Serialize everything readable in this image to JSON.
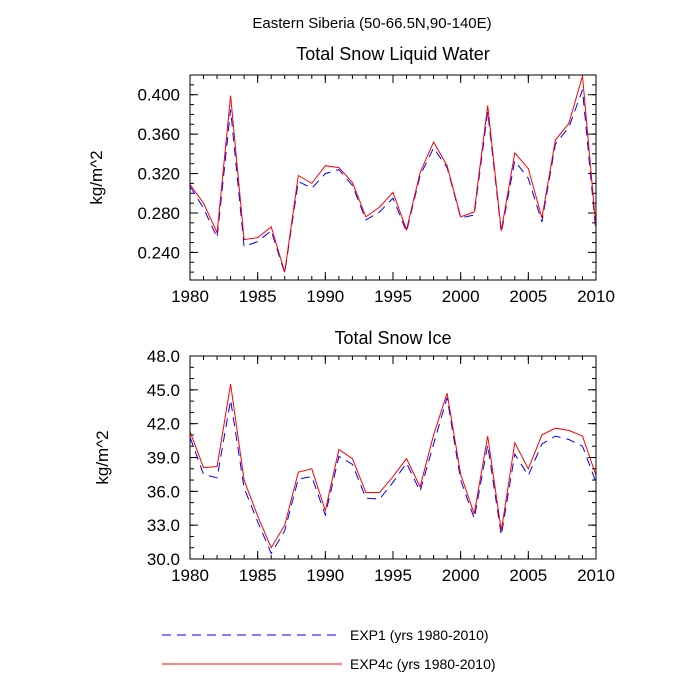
{
  "figure": {
    "suptitle": "Eastern Siberia (50-66.5N,90-140E)"
  },
  "chart_data": [
    {
      "type": "line",
      "title": "Total Snow Liquid Water",
      "xlabel": "",
      "ylabel": "kg/m^2",
      "xlim": [
        1980,
        2010
      ],
      "ylim": [
        0.212,
        0.42
      ],
      "yticks": [
        "0.240",
        "0.280",
        "0.320",
        "0.360",
        "0.400"
      ],
      "ytick_values": [
        0.24,
        0.28,
        0.32,
        0.36,
        0.4
      ],
      "xticks": [
        "1980",
        "1985",
        "1990",
        "1995",
        "2000",
        "2005",
        "2010"
      ],
      "xtick_values": [
        1980,
        1985,
        1990,
        1995,
        2000,
        2005,
        2010
      ],
      "grid": false,
      "x": [
        1980,
        1981,
        1982,
        1983,
        1984,
        1985,
        1986,
        1987,
        1988,
        1989,
        1990,
        1991,
        1992,
        1993,
        1994,
        1995,
        1996,
        1997,
        1998,
        1999,
        2000,
        2001,
        2002,
        2003,
        2004,
        2005,
        2006,
        2007,
        2008,
        2009,
        2010
      ],
      "series": [
        {
          "name": "EXP1 (yrs 1980-2010)",
          "color": "#0000ff",
          "dash": "dashed",
          "values": [
            0.307,
            0.285,
            0.255,
            0.385,
            0.246,
            0.251,
            0.262,
            0.219,
            0.312,
            0.305,
            0.32,
            0.324,
            0.308,
            0.273,
            0.281,
            0.295,
            0.261,
            0.318,
            0.346,
            0.326,
            0.275,
            0.278,
            0.383,
            0.26,
            0.333,
            0.315,
            0.271,
            0.35,
            0.367,
            0.405,
            0.26
          ]
        },
        {
          "name": "EXP4c (yrs 1980-2010)",
          "color": "#ff0000",
          "dash": "solid",
          "values": [
            0.309,
            0.29,
            0.26,
            0.399,
            0.253,
            0.255,
            0.266,
            0.22,
            0.318,
            0.31,
            0.328,
            0.326,
            0.311,
            0.276,
            0.286,
            0.301,
            0.263,
            0.321,
            0.352,
            0.328,
            0.276,
            0.281,
            0.389,
            0.262,
            0.341,
            0.325,
            0.275,
            0.354,
            0.371,
            0.419,
            0.265
          ]
        }
      ]
    },
    {
      "type": "line",
      "title": "Total Snow Ice",
      "xlabel": "",
      "ylabel": "kg/m^2",
      "xlim": [
        1980,
        2010
      ],
      "ylim": [
        30.0,
        48.0
      ],
      "yticks": [
        "30.0",
        "33.0",
        "36.0",
        "39.0",
        "42.0",
        "45.0",
        "48.0"
      ],
      "ytick_values": [
        30,
        33,
        36,
        39,
        42,
        45,
        48
      ],
      "xticks": [
        "1980",
        "1985",
        "1990",
        "1995",
        "2000",
        "2005",
        "2010"
      ],
      "xtick_values": [
        1980,
        1985,
        1990,
        1995,
        2000,
        2005,
        2010
      ],
      "grid": false,
      "x": [
        1980,
        1981,
        1982,
        1983,
        1984,
        1985,
        1986,
        1987,
        1988,
        1989,
        1990,
        1991,
        1992,
        1993,
        1994,
        1995,
        1996,
        1997,
        1998,
        1999,
        2000,
        2001,
        2002,
        2003,
        2004,
        2005,
        2006,
        2007,
        2008,
        2009,
        2010
      ],
      "series": [
        {
          "name": "EXP1 (yrs 1980-2010)",
          "color": "#0000ff",
          "dash": "dashed",
          "values": [
            40.8,
            37.5,
            37.2,
            44.1,
            36.3,
            33.3,
            30.5,
            32.5,
            37.1,
            37.3,
            33.9,
            39.1,
            38.4,
            35.4,
            35.3,
            36.8,
            38.5,
            36.0,
            40.2,
            44.3,
            37.0,
            33.6,
            40.1,
            32.1,
            39.3,
            37.4,
            40.2,
            40.9,
            40.6,
            40.0,
            36.8
          ]
        },
        {
          "name": "EXP4c (yrs 1980-2010)",
          "color": "#ff0000",
          "dash": "solid",
          "values": [
            41.3,
            38.1,
            38.2,
            45.5,
            37.0,
            33.8,
            31.0,
            33.0,
            37.7,
            38.0,
            34.3,
            39.7,
            38.9,
            35.9,
            35.9,
            37.3,
            38.9,
            36.4,
            41.0,
            44.7,
            37.5,
            34.0,
            40.9,
            32.5,
            40.3,
            38.0,
            41.0,
            41.6,
            41.4,
            40.9,
            37.4
          ]
        }
      ]
    }
  ],
  "legend": {
    "placement": "bottom",
    "items": [
      {
        "label": "EXP1 (yrs 1980-2010)",
        "color": "#0000ff",
        "dash": "dashed"
      },
      {
        "label": "EXP4c (yrs 1980-2010)",
        "color": "#ff0000",
        "dash": "solid"
      }
    ]
  }
}
